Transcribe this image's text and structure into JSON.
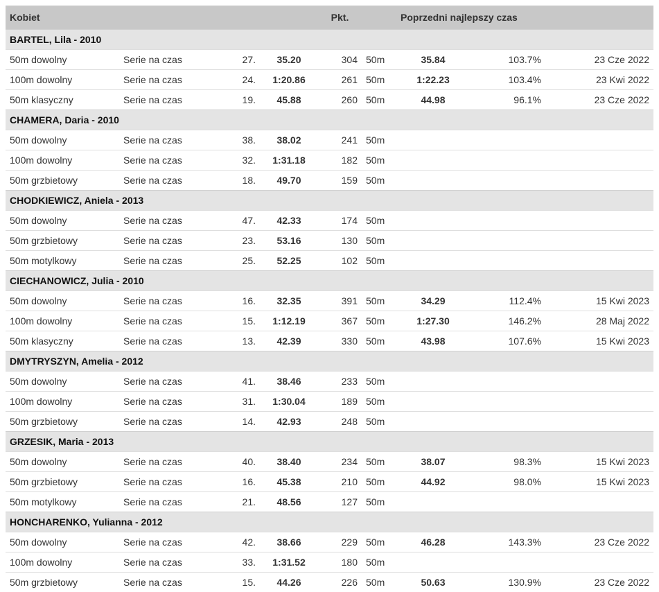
{
  "header": {
    "group": "Kobiet",
    "points": "Pkt.",
    "previous_best": "Poprzedni najlepszy czas"
  },
  "swimmers": [
    {
      "name": "BARTEL, Lila - 2010",
      "results": [
        {
          "event": "50m dowolny",
          "round": "Serie na czas",
          "place": "27.",
          "time": "35.20",
          "points": "304",
          "course": "50m",
          "prev_time": "35.84",
          "pct": "103.7%",
          "date": "23 Cze 2022"
        },
        {
          "event": "100m dowolny",
          "round": "Serie na czas",
          "place": "24.",
          "time": "1:20.86",
          "points": "261",
          "course": "50m",
          "prev_time": "1:22.23",
          "pct": "103.4%",
          "date": "23 Kwi 2022"
        },
        {
          "event": "50m klasyczny",
          "round": "Serie na czas",
          "place": "19.",
          "time": "45.88",
          "points": "260",
          "course": "50m",
          "prev_time": "44.98",
          "pct": "96.1%",
          "date": "23 Cze 2022"
        }
      ]
    },
    {
      "name": "CHAMERA, Daria - 2010",
      "results": [
        {
          "event": "50m dowolny",
          "round": "Serie na czas",
          "place": "38.",
          "time": "38.02",
          "points": "241",
          "course": "50m",
          "prev_time": "",
          "pct": "",
          "date": ""
        },
        {
          "event": "100m dowolny",
          "round": "Serie na czas",
          "place": "32.",
          "time": "1:31.18",
          "points": "182",
          "course": "50m",
          "prev_time": "",
          "pct": "",
          "date": ""
        },
        {
          "event": "50m grzbietowy",
          "round": "Serie na czas",
          "place": "18.",
          "time": "49.70",
          "points": "159",
          "course": "50m",
          "prev_time": "",
          "pct": "",
          "date": ""
        }
      ]
    },
    {
      "name": "CHODKIEWICZ, Aniela - 2013",
      "results": [
        {
          "event": "50m dowolny",
          "round": "Serie na czas",
          "place": "47.",
          "time": "42.33",
          "points": "174",
          "course": "50m",
          "prev_time": "",
          "pct": "",
          "date": ""
        },
        {
          "event": "50m grzbietowy",
          "round": "Serie na czas",
          "place": "23.",
          "time": "53.16",
          "points": "130",
          "course": "50m",
          "prev_time": "",
          "pct": "",
          "date": ""
        },
        {
          "event": "50m motylkowy",
          "round": "Serie na czas",
          "place": "25.",
          "time": "52.25",
          "points": "102",
          "course": "50m",
          "prev_time": "",
          "pct": "",
          "date": ""
        }
      ]
    },
    {
      "name": "CIECHANOWICZ, Julia - 2010",
      "results": [
        {
          "event": "50m dowolny",
          "round": "Serie na czas",
          "place": "16.",
          "time": "32.35",
          "points": "391",
          "course": "50m",
          "prev_time": "34.29",
          "pct": "112.4%",
          "date": "15 Kwi 2023"
        },
        {
          "event": "100m dowolny",
          "round": "Serie na czas",
          "place": "15.",
          "time": "1:12.19",
          "points": "367",
          "course": "50m",
          "prev_time": "1:27.30",
          "pct": "146.2%",
          "date": "28 Maj 2022"
        },
        {
          "event": "50m klasyczny",
          "round": "Serie na czas",
          "place": "13.",
          "time": "42.39",
          "points": "330",
          "course": "50m",
          "prev_time": "43.98",
          "pct": "107.6%",
          "date": "15 Kwi 2023"
        }
      ]
    },
    {
      "name": "DMYTRYSZYN, Amelia - 2012",
      "results": [
        {
          "event": "50m dowolny",
          "round": "Serie na czas",
          "place": "41.",
          "time": "38.46",
          "points": "233",
          "course": "50m",
          "prev_time": "",
          "pct": "",
          "date": ""
        },
        {
          "event": "100m dowolny",
          "round": "Serie na czas",
          "place": "31.",
          "time": "1:30.04",
          "points": "189",
          "course": "50m",
          "prev_time": "",
          "pct": "",
          "date": ""
        },
        {
          "event": "50m grzbietowy",
          "round": "Serie na czas",
          "place": "14.",
          "time": "42.93",
          "points": "248",
          "course": "50m",
          "prev_time": "",
          "pct": "",
          "date": ""
        }
      ]
    },
    {
      "name": "GRZESIK, Maria - 2013",
      "results": [
        {
          "event": "50m dowolny",
          "round": "Serie na czas",
          "place": "40.",
          "time": "38.40",
          "points": "234",
          "course": "50m",
          "prev_time": "38.07",
          "pct": "98.3%",
          "date": "15 Kwi 2023"
        },
        {
          "event": "50m grzbietowy",
          "round": "Serie na czas",
          "place": "16.",
          "time": "45.38",
          "points": "210",
          "course": "50m",
          "prev_time": "44.92",
          "pct": "98.0%",
          "date": "15 Kwi 2023"
        },
        {
          "event": "50m motylkowy",
          "round": "Serie na czas",
          "place": "21.",
          "time": "48.56",
          "points": "127",
          "course": "50m",
          "prev_time": "",
          "pct": "",
          "date": ""
        }
      ]
    },
    {
      "name": "HONCHARENKO, Yulianna - 2012",
      "results": [
        {
          "event": "50m dowolny",
          "round": "Serie na czas",
          "place": "42.",
          "time": "38.66",
          "points": "229",
          "course": "50m",
          "prev_time": "46.28",
          "pct": "143.3%",
          "date": "23 Cze 2022"
        },
        {
          "event": "100m dowolny",
          "round": "Serie na czas",
          "place": "33.",
          "time": "1:31.52",
          "points": "180",
          "course": "50m",
          "prev_time": "",
          "pct": "",
          "date": ""
        },
        {
          "event": "50m grzbietowy",
          "round": "Serie na czas",
          "place": "15.",
          "time": "44.26",
          "points": "226",
          "course": "50m",
          "prev_time": "50.63",
          "pct": "130.9%",
          "date": "23 Cze 2022"
        }
      ]
    }
  ]
}
